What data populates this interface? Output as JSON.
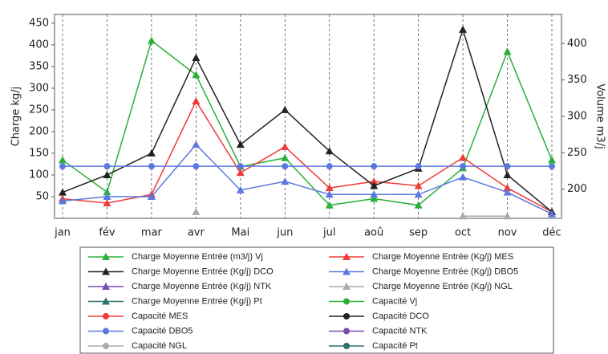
{
  "chart_data": {
    "type": "line",
    "y_label": "Charge kg/j",
    "y2_label": "Volume m3/j",
    "categories": [
      "jan",
      "fév",
      "mar",
      "avr",
      "Mai",
      "jun",
      "jul",
      "aoû",
      "sep",
      "oct",
      "nov",
      "déc"
    ],
    "ylim": [
      0,
      470
    ],
    "yticks": [
      50,
      100,
      150,
      200,
      250,
      300,
      350,
      400,
      450
    ],
    "y2lim": [
      160,
      440
    ],
    "y2ticks": [
      200,
      250,
      300,
      350,
      400
    ],
    "x_grid": true,
    "series": [
      {
        "name": "Charge Moyenne Entrée (m3/j) Vj",
        "color": "#2bb03a",
        "marker": "triangle",
        "axis": "y2",
        "values": [
          240,
          196,
          404,
          357,
          231,
          243,
          178,
          187,
          178,
          229,
          389,
          240
        ]
      },
      {
        "name": "Charge Moyenne Entrée (Kg/j) MES",
        "color": "#f03a3a",
        "marker": "triangle",
        "values": [
          45,
          35,
          55,
          270,
          105,
          165,
          70,
          85,
          75,
          140,
          70,
          15
        ]
      },
      {
        "name": "Charge Moyenne Entrée (Kg/j) DCO",
        "color": "#222222",
        "marker": "triangle",
        "values": [
          60,
          100,
          150,
          370,
          170,
          250,
          155,
          75,
          115,
          435,
          100,
          15
        ]
      },
      {
        "name": "Charge Moyenne Entrée (Kg/j) DBO5",
        "color": "#5a78e0",
        "marker": "triangle",
        "values": [
          40,
          50,
          50,
          170,
          65,
          85,
          55,
          55,
          55,
          95,
          60,
          10
        ]
      },
      {
        "name": "Charge Moyenne Entrée (Kg/j) NTK",
        "color": "#7a4cb0",
        "marker": "triangle",
        "values": [
          null,
          null,
          null,
          null,
          null,
          null,
          null,
          null,
          null,
          null,
          null,
          null
        ]
      },
      {
        "name": "Charge Moyenne Entrée (Kg/j) NGL",
        "color": "#aaaaaa",
        "marker": "triangle",
        "values": [
          null,
          null,
          null,
          15,
          null,
          null,
          null,
          null,
          null,
          5,
          5,
          null
        ]
      },
      {
        "name": "Charge Moyenne Entrée (Kg/j) Pt",
        "color": "#2f6f6f",
        "marker": "triangle",
        "values": [
          null,
          null,
          null,
          null,
          null,
          null,
          null,
          null,
          null,
          null,
          null,
          null
        ]
      },
      {
        "name": "Capacité Vj",
        "color": "#2bb03a",
        "marker": "circle",
        "values": [
          null,
          null,
          null,
          null,
          null,
          null,
          null,
          null,
          null,
          null,
          null,
          null
        ]
      },
      {
        "name": "Capacité MES",
        "color": "#f03a3a",
        "marker": "circle",
        "values": [
          null,
          null,
          null,
          null,
          null,
          null,
          null,
          null,
          null,
          null,
          null,
          null
        ]
      },
      {
        "name": "Capacité DCO",
        "color": "#222222",
        "marker": "circle",
        "values": [
          null,
          null,
          null,
          null,
          null,
          null,
          null,
          null,
          null,
          null,
          null,
          null
        ]
      },
      {
        "name": "Capacité DBO5",
        "color": "#5a78e0",
        "marker": "circle",
        "values": [
          120,
          120,
          120,
          120,
          120,
          120,
          120,
          120,
          120,
          120,
          120,
          120
        ]
      },
      {
        "name": "Capacité NTK",
        "color": "#7a4cb0",
        "marker": "circle",
        "values": [
          null,
          null,
          null,
          null,
          null,
          null,
          null,
          null,
          null,
          null,
          null,
          null
        ]
      },
      {
        "name": "Capacité NGL",
        "color": "#aaaaaa",
        "marker": "circle",
        "values": [
          null,
          null,
          null,
          null,
          null,
          null,
          null,
          null,
          null,
          null,
          null,
          null
        ]
      },
      {
        "name": "Capacité Pt",
        "color": "#2f6f6f",
        "marker": "circle",
        "values": [
          null,
          null,
          null,
          null,
          null,
          null,
          null,
          null,
          null,
          null,
          null,
          null
        ]
      }
    ]
  }
}
